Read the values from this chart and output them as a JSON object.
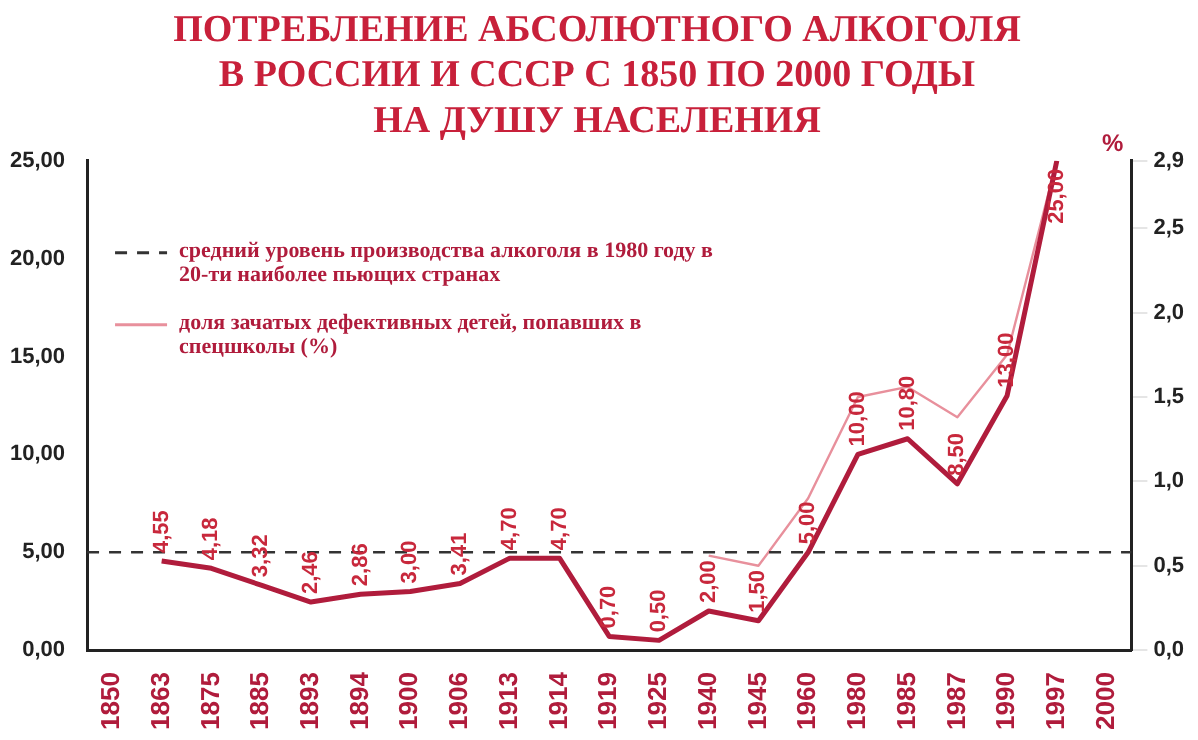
{
  "chart_data": {
    "type": "line",
    "title": "ПОТРЕБЛЕНИЕ АБСОЛЮТНОГО АЛКОГОЛЯ\nВ РОССИИ И СССР С 1850 ПО 2000 ГОДЫ\nНА ДУШУ НАСЕЛЕНИЯ",
    "y2label": "%",
    "categories": [
      "1850",
      "1863",
      "1875",
      "1885",
      "1893",
      "1894",
      "1900",
      "1906",
      "1913",
      "1914",
      "1919",
      "1925",
      "1940",
      "1945",
      "1960",
      "1980",
      "1985",
      "1987",
      "1990",
      "1997",
      "2000"
    ],
    "series": [
      {
        "color": "#b01c3c",
        "values": [
          null,
          4.55,
          4.18,
          3.32,
          2.46,
          2.86,
          3.0,
          3.41,
          4.7,
          4.7,
          0.7,
          0.5,
          2.0,
          1.5,
          5.0,
          10.0,
          10.8,
          8.5,
          13.0,
          25.0,
          null
        ],
        "value_labels": [
          null,
          "4,55",
          "4,18",
          "3,32",
          "2,46",
          "2,86",
          "3,00",
          "3,41",
          "4,70",
          "4,70",
          "0,70",
          "0,50",
          "2,00",
          "1,50",
          "5,00",
          "10,00",
          "10,80",
          "8,50",
          "13,00",
          "25,00",
          null
        ]
      },
      {
        "name": "доля зачатых дефективных детей, попавших в спецшколы (%)",
        "color": "#e8909c",
        "axis": "y2",
        "values": [
          null,
          null,
          null,
          null,
          null,
          null,
          null,
          null,
          null,
          null,
          null,
          null,
          0.56,
          0.5,
          0.9,
          1.5,
          1.56,
          1.38,
          1.75,
          2.9,
          null
        ]
      }
    ],
    "ylim": [
      0,
      25
    ],
    "yticks": [
      {
        "value": 0,
        "label": "0,00"
      },
      {
        "value": 5,
        "label": "5,00"
      },
      {
        "value": 10,
        "label": "10,00"
      },
      {
        "value": 15,
        "label": "15,00"
      },
      {
        "value": 20,
        "label": "20,00"
      },
      {
        "value": 25,
        "label": "25,00"
      }
    ],
    "y2lim": [
      0,
      2.9
    ],
    "y2ticks": [
      {
        "value": 0,
        "label": "0,0"
      },
      {
        "value": 0.5,
        "label": "0,5"
      },
      {
        "value": 1,
        "label": "1,0"
      },
      {
        "value": 1.5,
        "label": "1,5"
      },
      {
        "value": 2,
        "label": "2,0"
      },
      {
        "value": 2.5,
        "label": "2,5"
      },
      {
        "value": 2.9,
        "label": "2,9"
      }
    ],
    "ref_lines": [
      {
        "axis": "y",
        "value": 5,
        "label": "средний уровень производства алкоголя в 1980 году в 20-ти наиболее пьющих странах",
        "line_style": "dashed",
        "color": "#333333"
      }
    ],
    "legend": "top left",
    "grid": false,
    "marker": "none",
    "line_style": "solid"
  }
}
